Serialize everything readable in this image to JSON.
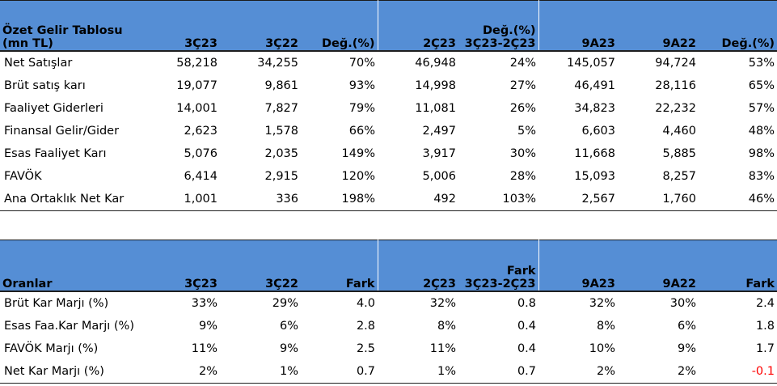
{
  "table1": {
    "header": {
      "title_line1": "Özet Gelir Tablosu",
      "title_line2": "(mn TL)",
      "q3_23": "3Ç23",
      "q3_22": "3Ç22",
      "chg": "Değ.(%)",
      "q2_23": "2Ç23",
      "chg2_line1": "Değ.(%)",
      "chg2_line2": "3Ç23-2Ç23",
      "m9_23": "9A23",
      "m9_22": "9A22",
      "chg3": "Değ.(%)"
    },
    "rows": [
      {
        "label": "Net Satışlar",
        "v": [
          "58,218",
          "34,255",
          "70%",
          "46,948",
          "24%",
          "145,057",
          "94,724",
          "53%"
        ]
      },
      {
        "label": "Brüt satış karı",
        "v": [
          "19,077",
          "9,861",
          "93%",
          "14,998",
          "27%",
          "46,491",
          "28,116",
          "65%"
        ]
      },
      {
        "label": "Faaliyet Giderleri",
        "v": [
          "14,001",
          "7,827",
          "79%",
          "11,081",
          "26%",
          "34,823",
          "22,232",
          "57%"
        ]
      },
      {
        "label": "Finansal Gelir/Gider",
        "v": [
          "2,623",
          "1,578",
          "66%",
          "2,497",
          "5%",
          "6,603",
          "4,460",
          "48%"
        ]
      },
      {
        "label": "Esas Faaliyet Karı",
        "v": [
          "5,076",
          "2,035",
          "149%",
          "3,917",
          "30%",
          "11,668",
          "5,885",
          "98%"
        ]
      },
      {
        "label": "FAVÖK",
        "v": [
          "6,414",
          "2,915",
          "120%",
          "5,006",
          "28%",
          "15,093",
          "8,257",
          "83%"
        ]
      },
      {
        "label": "Ana Ortaklık Net Kar",
        "v": [
          "1,001",
          "336",
          "198%",
          "492",
          "103%",
          "2,567",
          "1,760",
          "46%"
        ]
      }
    ]
  },
  "table2": {
    "header": {
      "title": "Oranlar",
      "q3_23": "3Ç23",
      "q3_22": "3Ç22",
      "diff": "Fark",
      "q2_23": "2Ç23",
      "diff2_line1": "Fark",
      "diff2_line2": "3Ç23-2Ç23",
      "m9_23": "9A23",
      "m9_22": "9A22",
      "diff3": "Fark"
    },
    "rows": [
      {
        "label": "Brüt Kar Marjı (%)",
        "v": [
          "33%",
          "29%",
          "4.0",
          "32%",
          "0.8",
          "32%",
          "30%",
          "2.4"
        ]
      },
      {
        "label": "Esas Faa.Kar Marjı (%)",
        "v": [
          "9%",
          "6%",
          "2.8",
          "8%",
          "0.4",
          "8%",
          "6%",
          "1.8"
        ]
      },
      {
        "label": "FAVÖK Marjı (%)",
        "v": [
          "11%",
          "9%",
          "2.5",
          "11%",
          "0.4",
          "10%",
          "9%",
          "1.7"
        ]
      },
      {
        "label": "Net Kar Marjı (%)",
        "v": [
          "2%",
          "1%",
          "0.7",
          "1%",
          "0.7",
          "2%",
          "2%",
          "-0.1"
        ]
      }
    ]
  },
  "colors": {
    "header_bg": "#558ed5",
    "negative": "#ff0000"
  }
}
